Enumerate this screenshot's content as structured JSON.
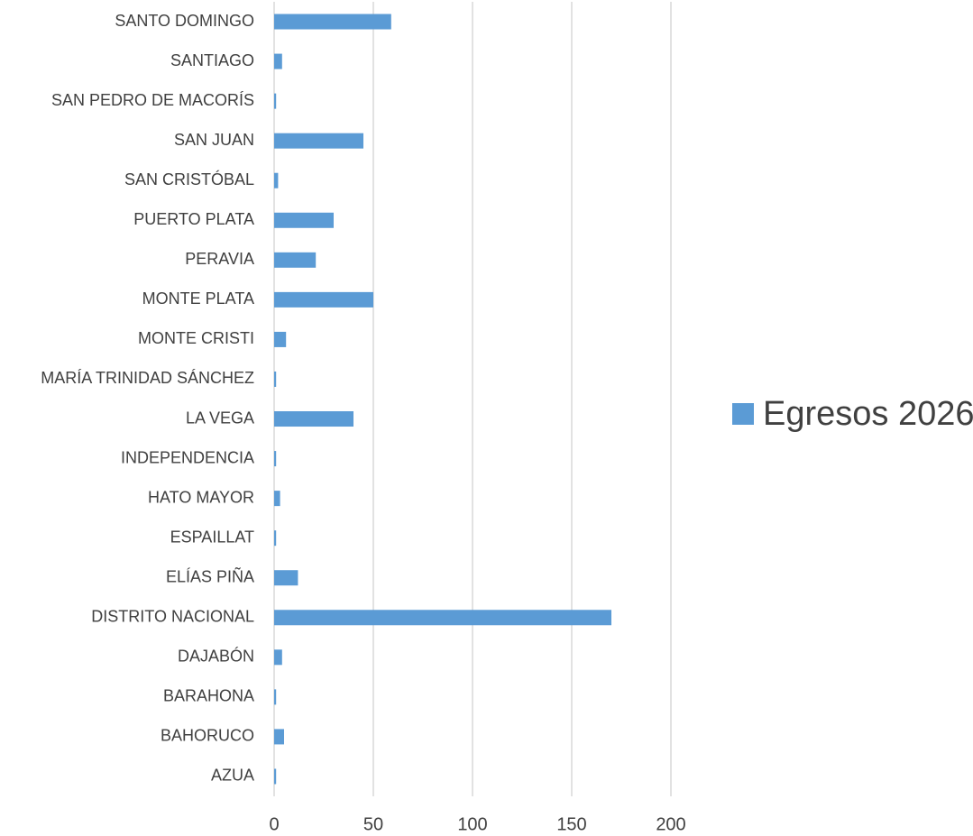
{
  "chart_data": {
    "type": "bar",
    "orientation": "horizontal",
    "categories": [
      "AZUA",
      "BAHORUCO",
      "BARAHONA",
      "DAJABÓN",
      "DISTRITO NACIONAL",
      "ELÍAS PIÑA",
      "ESPAILLAT",
      "HATO MAYOR",
      "INDEPENDENCIA",
      "LA VEGA",
      "MARÍA TRINIDAD SÁNCHEZ",
      "MONTE CRISTI",
      "MONTE PLATA",
      "PERAVIA",
      "PUERTO PLATA",
      "SAN CRISTÓBAL",
      "SAN JUAN",
      "SAN PEDRO DE MACORÍS",
      "SANTIAGO",
      "SANTO DOMINGO"
    ],
    "series": [
      {
        "name": "Egresos 2026",
        "color": "#5b9bd5",
        "values": [
          1,
          5,
          1,
          4,
          170,
          12,
          1,
          3,
          1,
          40,
          1,
          6,
          50,
          21,
          30,
          2,
          45,
          1,
          4,
          59
        ]
      }
    ],
    "xlim": [
      0,
      200
    ],
    "xticks": [
      0,
      50,
      100,
      150,
      200
    ],
    "grid": true,
    "legend": "right"
  }
}
